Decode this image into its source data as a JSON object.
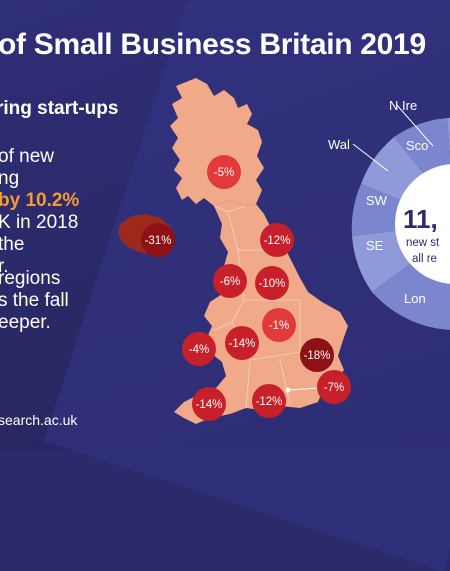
{
  "title": "of Small Business Britain 2019",
  "subtitle": "ring start-ups",
  "body": {
    "line1": "of new",
    "line2": "ng",
    "highlight": "by 10.2%",
    "line4": "K in 2018",
    "line5": "the",
    "line6": "r."
  },
  "body2": {
    "line1": "regions",
    "line2": "s the fall",
    "line3": "eeper."
  },
  "url": "search.ac.uk",
  "regions": [
    {
      "label": "-5%",
      "tone": "light"
    },
    {
      "label": "-31%",
      "tone": "dark"
    },
    {
      "label": "-12%",
      "tone": "mid"
    },
    {
      "label": "-6%",
      "tone": "mid"
    },
    {
      "label": "-10%",
      "tone": "mid"
    },
    {
      "label": "-1%",
      "tone": "light"
    },
    {
      "label": "-4%",
      "tone": "mid"
    },
    {
      "label": "-14%",
      "tone": "mid"
    },
    {
      "label": "-18%",
      "tone": "dark"
    },
    {
      "label": "-14%",
      "tone": "mid"
    },
    {
      "label": "-12%",
      "tone": "mid"
    },
    {
      "label": "-7%",
      "tone": "mid"
    }
  ],
  "donut": {
    "segments": [
      "N Ire",
      "Sco",
      "Wal",
      "SW",
      "SE",
      "Lon"
    ],
    "center_number": "11,",
    "center_line1": "new st",
    "center_line2": "all re"
  },
  "colors": {
    "background": "#2b2a6b",
    "highlight": "#f29b38",
    "map_fill": "#f0a989",
    "badge_light": "#e23a3a",
    "badge_mid": "#c8202a",
    "badge_dark": "#8e1116",
    "donut_a": "#7c86cf",
    "donut_b": "#8f9ad8"
  }
}
